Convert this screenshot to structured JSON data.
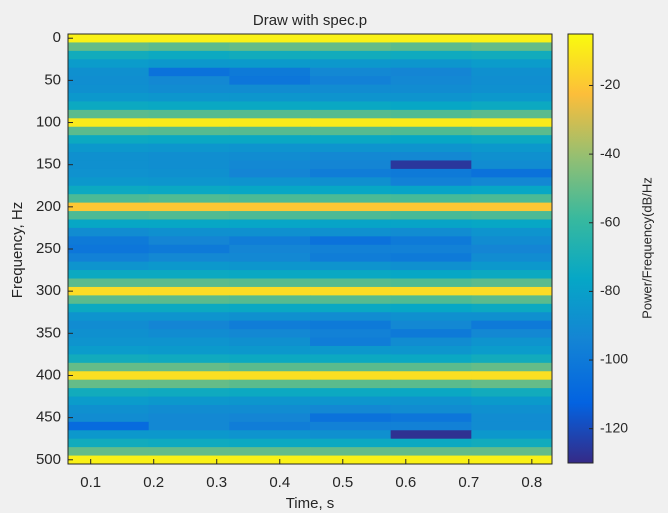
{
  "chart_data": {
    "type": "heatmap",
    "title": "Draw with spec.p",
    "x_label": "Time, s",
    "y_label": "Frequency, Hz",
    "colorbar_label": "Power/Frequency(dB/Hz",
    "x": [
      0.128,
      0.256,
      0.384,
      0.512,
      0.64,
      0.768
    ],
    "y": [
      0,
      10,
      20,
      30,
      40,
      50,
      60,
      70,
      80,
      90,
      100,
      110,
      120,
      130,
      140,
      150,
      160,
      170,
      180,
      190,
      200,
      210,
      220,
      230,
      240,
      250,
      260,
      270,
      280,
      290,
      300,
      310,
      320,
      330,
      340,
      350,
      360,
      370,
      380,
      390,
      400,
      410,
      420,
      430,
      440,
      450,
      460,
      470,
      480,
      490,
      500
    ],
    "z": [
      [
        -8,
        -8,
        -8,
        -8,
        -8,
        -8
      ],
      [
        -50,
        -52,
        -50,
        -50,
        -52,
        -50
      ],
      [
        -72,
        -74,
        -72,
        -72,
        -73,
        -72
      ],
      [
        -82,
        -84,
        -83,
        -84,
        -85,
        -82
      ],
      [
        -88,
        -104,
        -100,
        -92,
        -94,
        -88
      ],
      [
        -89,
        -92,
        -102,
        -96,
        -92,
        -89
      ],
      [
        -88,
        -90,
        -90,
        -90,
        -90,
        -88
      ],
      [
        -84,
        -85,
        -85,
        -86,
        -86,
        -84
      ],
      [
        -74,
        -75,
        -75,
        -75,
        -76,
        -74
      ],
      [
        -52,
        -53,
        -53,
        -53,
        -54,
        -52
      ],
      [
        -10,
        -10,
        -10,
        -10,
        -10,
        -10
      ],
      [
        -52,
        -53,
        -53,
        -53,
        -54,
        -52
      ],
      [
        -74,
        -75,
        -75,
        -75,
        -76,
        -74
      ],
      [
        -84,
        -85,
        -86,
        -86,
        -86,
        -84
      ],
      [
        -88,
        -89,
        -90,
        -92,
        -92,
        -88
      ],
      [
        -88,
        -89,
        -92,
        -94,
        -126,
        -90
      ],
      [
        -87,
        -88,
        -94,
        -98,
        -100,
        -104
      ],
      [
        -84,
        -85,
        -86,
        -88,
        -96,
        -92
      ],
      [
        -74,
        -75,
        -76,
        -76,
        -78,
        -76
      ],
      [
        -55,
        -54,
        -55,
        -55,
        -56,
        -55
      ],
      [
        -20,
        -20,
        -20,
        -20,
        -20,
        -20
      ],
      [
        -55,
        -54,
        -55,
        -55,
        -56,
        -55
      ],
      [
        -76,
        -76,
        -77,
        -78,
        -78,
        -76
      ],
      [
        -90,
        -88,
        -88,
        -88,
        -90,
        -86
      ],
      [
        -100,
        -94,
        -98,
        -104,
        -100,
        -90
      ],
      [
        -102,
        -100,
        -94,
        -96,
        -96,
        -94
      ],
      [
        -96,
        -92,
        -92,
        -98,
        -100,
        -90
      ],
      [
        -86,
        -84,
        -85,
        -86,
        -88,
        -84
      ],
      [
        -74,
        -74,
        -75,
        -75,
        -76,
        -74
      ],
      [
        -52,
        -52,
        -53,
        -53,
        -54,
        -52
      ],
      [
        -14,
        -14,
        -14,
        -14,
        -14,
        -14
      ],
      [
        -52,
        -52,
        -53,
        -53,
        -54,
        -52
      ],
      [
        -74,
        -74,
        -75,
        -75,
        -76,
        -74
      ],
      [
        -86,
        -86,
        -88,
        -90,
        -88,
        -88
      ],
      [
        -90,
        -94,
        -98,
        -100,
        -92,
        -100
      ],
      [
        -88,
        -90,
        -92,
        -96,
        -100,
        -92
      ],
      [
        -86,
        -86,
        -88,
        -98,
        -90,
        -86
      ],
      [
        -82,
        -83,
        -84,
        -84,
        -85,
        -82
      ],
      [
        -72,
        -73,
        -74,
        -74,
        -75,
        -72
      ],
      [
        -50,
        -50,
        -52,
        -52,
        -52,
        -50
      ],
      [
        -13,
        -13,
        -13,
        -13,
        -13,
        -13
      ],
      [
        -50,
        -50,
        -52,
        -52,
        -52,
        -50
      ],
      [
        -72,
        -73,
        -74,
        -74,
        -75,
        -72
      ],
      [
        -82,
        -84,
        -85,
        -85,
        -86,
        -83
      ],
      [
        -88,
        -90,
        -90,
        -92,
        -90,
        -88
      ],
      [
        -90,
        -92,
        -94,
        -104,
        -102,
        -90
      ],
      [
        -108,
        -92,
        -98,
        -96,
        -96,
        -90
      ],
      [
        -84,
        -84,
        -86,
        -88,
        -128,
        -84
      ],
      [
        -72,
        -73,
        -74,
        -74,
        -74,
        -72
      ],
      [
        -50,
        -50,
        -50,
        -50,
        -50,
        -50
      ],
      [
        -8,
        -8,
        -8,
        -8,
        -8,
        -8
      ]
    ],
    "xlim": [
      0.064,
      0.832
    ],
    "xticks": [
      0.1,
      0.2,
      0.3,
      0.4,
      0.5,
      0.6,
      0.7,
      0.8
    ],
    "ylim": [
      -5,
      505
    ],
    "yticks": [
      0,
      50,
      100,
      150,
      200,
      250,
      300,
      350,
      400,
      450,
      500
    ],
    "y_reversed": true,
    "clim": [
      -130,
      -5
    ],
    "cticks": [
      -120,
      -100,
      -80,
      -60,
      -40,
      -20
    ],
    "colormap": "parula"
  }
}
